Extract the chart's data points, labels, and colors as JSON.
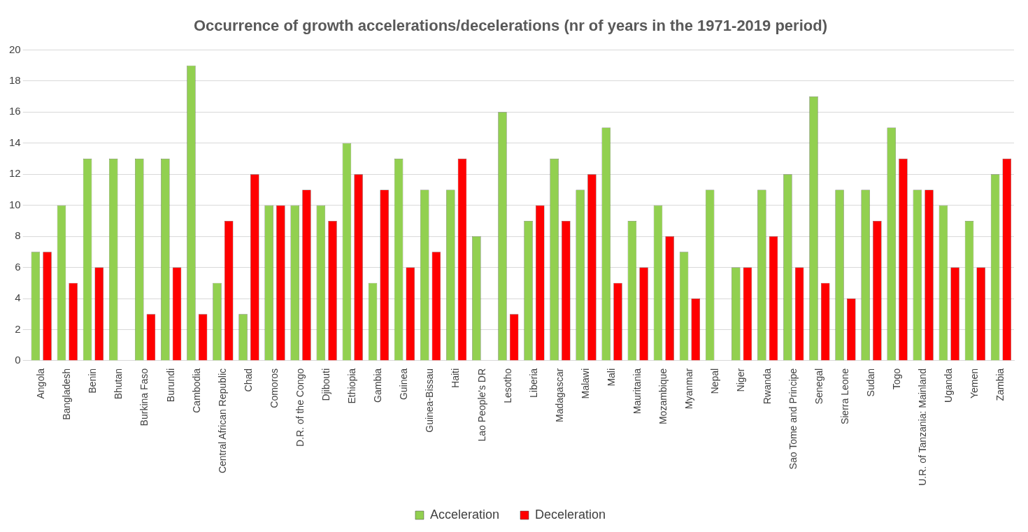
{
  "chart_data": {
    "type": "bar",
    "title": "Occurrence of growth accelerations/decelerations (nr of years in the 1971-2019 period)",
    "categories": [
      "Angola",
      "Bangladesh",
      "Benin",
      "Bhutan",
      "Burkina Faso",
      "Burundi",
      "Cambodia",
      "Central African Republic",
      "Chad",
      "Comoros",
      "D.R. of the Congo",
      "Djibouti",
      "Ethiopia",
      "Gambia",
      "Guinea",
      "Guinea-Bissau",
      "Haiti",
      "Lao People's DR",
      "Lesotho",
      "Liberia",
      "Madagascar",
      "Malawi",
      "Mali",
      "Mauritania",
      "Mozambique",
      "Myanmar",
      "Nepal",
      "Niger",
      "Rwanda",
      "Sao Tome and Principe",
      "Senegal",
      "Sierra Leone",
      "Sudan",
      "Togo",
      "U.R. of Tanzania: Mainland",
      "Uganda",
      "Yemen",
      "Zambia"
    ],
    "series": [
      {
        "name": "Acceleration",
        "color": "#92d050",
        "values": [
          7,
          10,
          13,
          13,
          13,
          13,
          19,
          5,
          3,
          10,
          10,
          10,
          14,
          5,
          13,
          11,
          11,
          8,
          16,
          9,
          13,
          11,
          15,
          9,
          10,
          7,
          11,
          6,
          11,
          12,
          17,
          11,
          11,
          15,
          11,
          10,
          9,
          12
        ]
      },
      {
        "name": "Deceleration",
        "color": "#ff0000",
        "values": [
          7,
          5,
          6,
          0,
          3,
          6,
          3,
          9,
          12,
          10,
          11,
          9,
          12,
          11,
          6,
          7,
          13,
          0,
          3,
          10,
          9,
          12,
          5,
          6,
          8,
          4,
          0,
          6,
          8,
          6,
          5,
          4,
          9,
          13,
          11,
          6,
          6,
          13
        ]
      }
    ],
    "ylim": [
      0,
      20
    ],
    "yticks": [
      0,
      2,
      4,
      6,
      8,
      10,
      12,
      14,
      16,
      18,
      20
    ],
    "grid": "y",
    "legend": "bottom"
  }
}
